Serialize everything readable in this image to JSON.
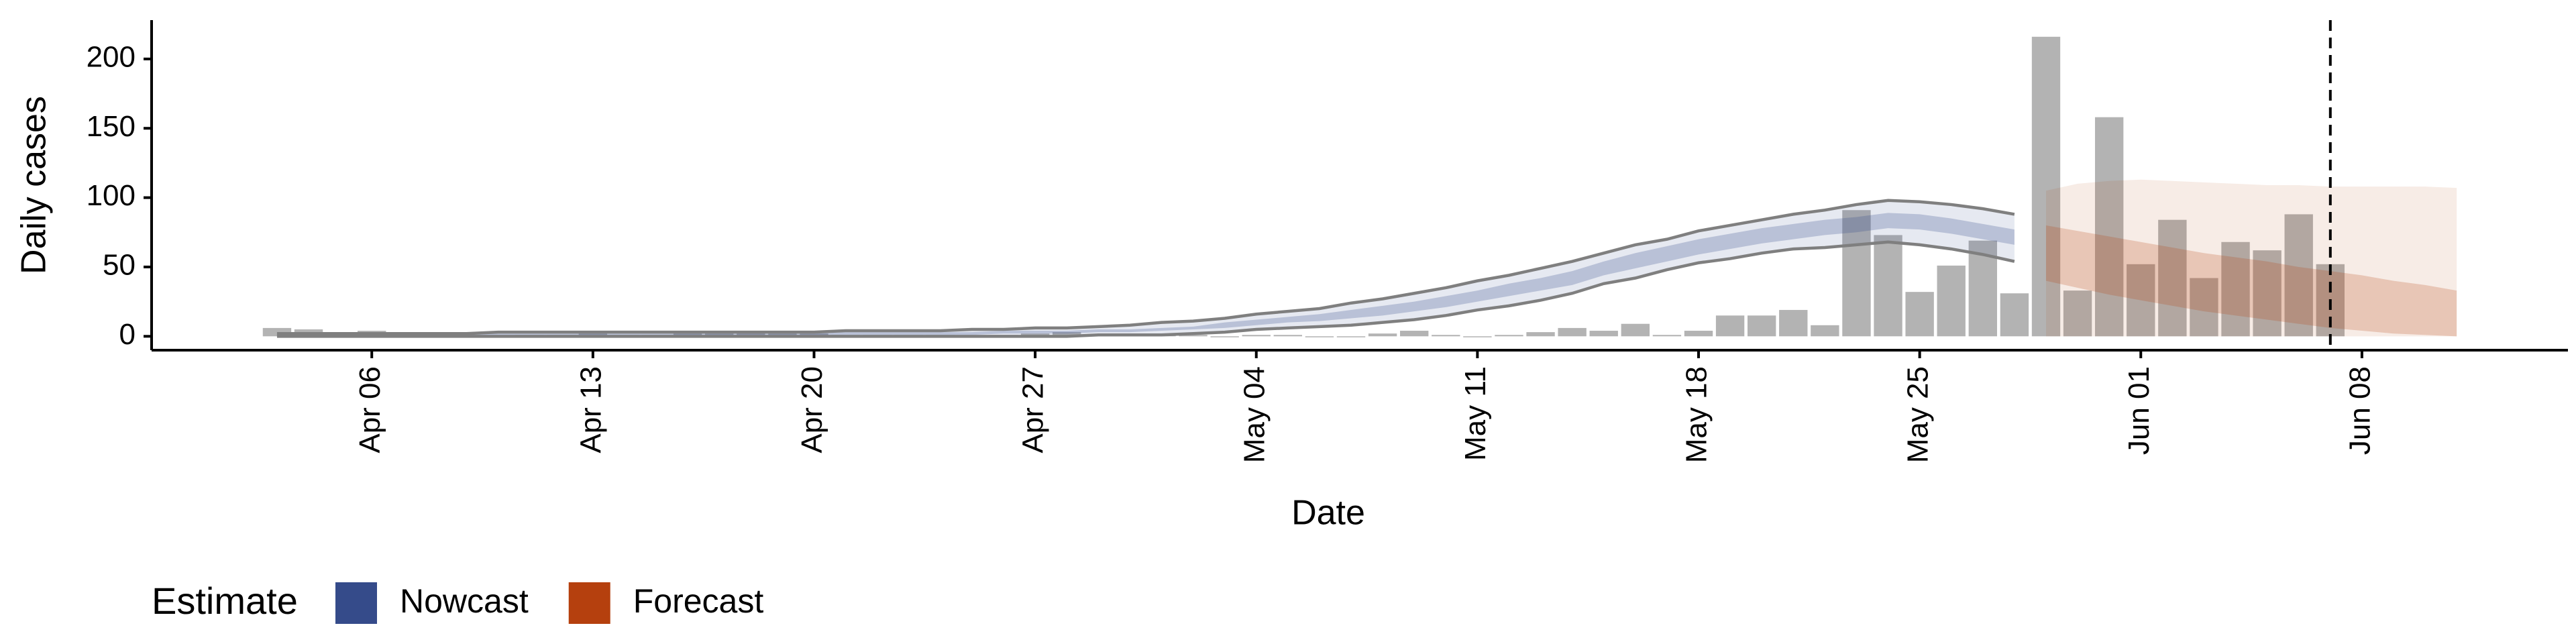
{
  "chart_data": {
    "type": "bar",
    "x_label": "Date",
    "y_label": "Daily cases",
    "legend_title": "Estimate",
    "x": [
      "Apr 03",
      "Apr 04",
      "Apr 05",
      "Apr 06",
      "Apr 07",
      "Apr 08",
      "Apr 09",
      "Apr 10",
      "Apr 11",
      "Apr 12",
      "Apr 13",
      "Apr 14",
      "Apr 15",
      "Apr 16",
      "Apr 17",
      "Apr 18",
      "Apr 19",
      "Apr 20",
      "Apr 21",
      "Apr 22",
      "Apr 23",
      "Apr 24",
      "Apr 25",
      "Apr 26",
      "Apr 27",
      "Apr 28",
      "Apr 29",
      "Apr 30",
      "May 01",
      "May 02",
      "May 03",
      "May 04",
      "May 05",
      "May 06",
      "May 07",
      "May 08",
      "May 09",
      "May 10",
      "May 11",
      "May 12",
      "May 13",
      "May 14",
      "May 15",
      "May 16",
      "May 17",
      "May 18",
      "May 19",
      "May 20",
      "May 21",
      "May 22",
      "May 23",
      "May 24",
      "May 25",
      "May 26",
      "May 27",
      "May 28",
      "May 29",
      "May 30",
      "May 31",
      "Jun 01",
      "Jun 02",
      "Jun 03",
      "Jun 04",
      "Jun 05",
      "Jun 06",
      "Jun 07",
      "Jun 08",
      "Jun 09",
      "Jun 10",
      "Jun 11"
    ],
    "values": [
      6,
      5,
      3,
      4,
      2,
      3,
      1,
      0,
      1,
      1,
      2,
      1,
      1,
      2,
      2,
      3,
      2,
      2,
      1,
      1,
      1,
      1,
      0,
      1,
      2,
      3,
      1,
      2,
      1,
      1,
      0,
      1,
      1,
      0,
      0,
      2,
      4,
      1,
      0,
      1,
      3,
      6,
      4,
      9,
      1,
      4,
      15,
      15,
      19,
      8,
      91,
      73,
      32,
      51,
      69,
      31,
      216,
      33,
      158,
      52,
      84,
      42,
      68,
      62,
      88,
      52,
      null,
      null,
      null,
      null
    ],
    "bar_color": "#b3b3b3",
    "estimates": [
      {
        "name": "Nowcast",
        "color": "#354b8a",
        "upper_90": [
          2,
          2,
          2,
          2,
          2,
          2,
          2,
          3,
          3,
          3,
          3,
          3,
          3,
          3,
          3,
          3,
          3,
          3,
          4,
          4,
          4,
          4,
          5,
          5,
          6,
          6,
          7,
          8,
          10,
          11,
          13,
          16,
          18,
          20,
          24,
          27,
          31,
          35,
          40,
          44,
          49,
          54,
          60,
          66,
          70,
          76,
          80,
          84,
          88,
          91,
          95,
          98,
          97,
          95,
          92,
          88,
          null,
          null,
          null,
          null,
          null,
          null,
          null,
          null,
          null,
          null,
          null,
          null,
          null,
          null
        ],
        "lower_90": [
          0,
          0,
          0,
          0,
          0,
          0,
          0,
          0,
          0,
          0,
          0,
          0,
          0,
          0,
          0,
          0,
          0,
          0,
          0,
          0,
          0,
          0,
          0,
          0,
          0,
          0,
          1,
          1,
          1,
          2,
          3,
          5,
          6,
          7,
          8,
          10,
          12,
          15,
          19,
          22,
          26,
          31,
          38,
          42,
          48,
          53,
          56,
          60,
          63,
          64,
          66,
          68,
          66,
          63,
          59,
          54,
          null,
          null,
          null,
          null,
          null,
          null,
          null,
          null,
          null,
          null,
          null,
          null,
          null,
          null
        ],
        "upper_50": [
          2,
          2,
          2,
          2,
          2,
          2,
          2,
          2,
          2,
          2,
          2,
          2,
          2,
          2,
          2,
          2,
          2,
          2,
          3,
          3,
          3,
          3,
          3,
          4,
          4,
          4,
          5,
          5,
          6,
          7,
          10,
          12,
          14,
          16,
          19,
          22,
          25,
          29,
          33,
          38,
          42,
          47,
          54,
          60,
          65,
          70,
          74,
          78,
          81,
          84,
          86,
          89,
          88,
          85,
          81,
          77,
          null,
          null,
          null,
          null,
          null,
          null,
          null,
          null,
          null,
          null,
          null,
          null,
          null,
          null
        ],
        "lower_50": [
          0,
          0,
          0,
          0,
          0,
          0,
          0,
          0,
          0,
          0,
          0,
          0,
          0,
          0,
          0,
          0,
          0,
          0,
          1,
          1,
          1,
          1,
          1,
          2,
          2,
          2,
          3,
          3,
          4,
          5,
          6,
          8,
          10,
          11,
          13,
          15,
          18,
          21,
          25,
          29,
          33,
          37,
          44,
          49,
          54,
          59,
          63,
          67,
          70,
          73,
          75,
          78,
          77,
          74,
          70,
          66,
          null,
          null,
          null,
          null,
          null,
          null,
          null,
          null,
          null,
          null,
          null,
          null,
          null,
          null
        ]
      },
      {
        "name": "Forecast",
        "color": "#b5400e",
        "upper_90": [
          null,
          null,
          null,
          null,
          null,
          null,
          null,
          null,
          null,
          null,
          null,
          null,
          null,
          null,
          null,
          null,
          null,
          null,
          null,
          null,
          null,
          null,
          null,
          null,
          null,
          null,
          null,
          null,
          null,
          null,
          null,
          null,
          null,
          null,
          null,
          null,
          null,
          null,
          null,
          null,
          null,
          null,
          null,
          null,
          null,
          null,
          null,
          null,
          null,
          null,
          null,
          null,
          null,
          null,
          null,
          null,
          105,
          110,
          112,
          113,
          112,
          111,
          110,
          109,
          109,
          108,
          108,
          108,
          108,
          107
        ],
        "lower_90": [
          null,
          null,
          null,
          null,
          null,
          null,
          null,
          null,
          null,
          null,
          null,
          null,
          null,
          null,
          null,
          null,
          null,
          null,
          null,
          null,
          null,
          null,
          null,
          null,
          null,
          null,
          null,
          null,
          null,
          null,
          null,
          null,
          null,
          null,
          null,
          null,
          null,
          null,
          null,
          null,
          null,
          null,
          null,
          null,
          null,
          null,
          null,
          null,
          null,
          null,
          null,
          null,
          null,
          null,
          null,
          null,
          0,
          0,
          0,
          0,
          0,
          0,
          0,
          0,
          0,
          0,
          0,
          0,
          0,
          0
        ],
        "upper_50": [
          null,
          null,
          null,
          null,
          null,
          null,
          null,
          null,
          null,
          null,
          null,
          null,
          null,
          null,
          null,
          null,
          null,
          null,
          null,
          null,
          null,
          null,
          null,
          null,
          null,
          null,
          null,
          null,
          null,
          null,
          null,
          null,
          null,
          null,
          null,
          null,
          null,
          null,
          null,
          null,
          null,
          null,
          null,
          null,
          null,
          null,
          null,
          null,
          null,
          null,
          null,
          null,
          null,
          null,
          null,
          null,
          80,
          76,
          72,
          68,
          64,
          60,
          57,
          54,
          50,
          47,
          44,
          40,
          37,
          33
        ],
        "lower_50": [
          null,
          null,
          null,
          null,
          null,
          null,
          null,
          null,
          null,
          null,
          null,
          null,
          null,
          null,
          null,
          null,
          null,
          null,
          null,
          null,
          null,
          null,
          null,
          null,
          null,
          null,
          null,
          null,
          null,
          null,
          null,
          null,
          null,
          null,
          null,
          null,
          null,
          null,
          null,
          null,
          null,
          null,
          null,
          null,
          null,
          null,
          null,
          null,
          null,
          null,
          null,
          null,
          null,
          null,
          null,
          null,
          40,
          35,
          30,
          26,
          22,
          18,
          15,
          12,
          9,
          6,
          4,
          2,
          1,
          0
        ]
      }
    ],
    "vline": "Jun 07",
    "ylim": [
      -10,
      228
    ],
    "yticks": [
      0,
      50,
      100,
      150,
      200
    ],
    "xticks": [
      "Apr 06",
      "Apr 13",
      "Apr 20",
      "Apr 27",
      "May 04",
      "May 11",
      "May 18",
      "May 25",
      "Jun 01",
      "Jun 08"
    ],
    "grid": false
  }
}
